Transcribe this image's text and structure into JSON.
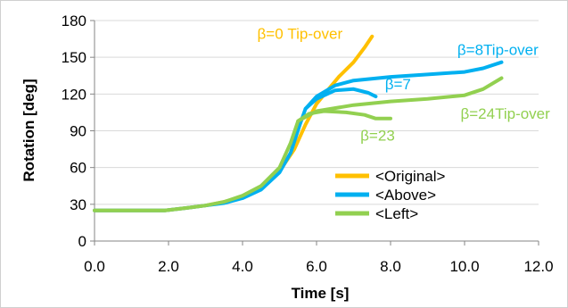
{
  "chart_data": {
    "type": "line",
    "xlabel": "Time [s]",
    "ylabel": "Rotation [deg]",
    "xlim": [
      0,
      12
    ],
    "ylim": [
      0,
      180
    ],
    "x_ticks": [
      0,
      2,
      4,
      6,
      8,
      10,
      12
    ],
    "x_tick_labels": [
      "0.0",
      "2.0",
      "4.0",
      "6.0",
      "8.0",
      "10.0",
      "12.0"
    ],
    "y_ticks": [
      0,
      30,
      60,
      90,
      120,
      150,
      180
    ],
    "y_tick_labels": [
      "0",
      "30",
      "60",
      "90",
      "120",
      "150",
      "180"
    ],
    "grid": "horizontal",
    "legend_position": "lower-right",
    "series": [
      {
        "name": "<Original>",
        "color": "#FFC000",
        "points": [
          [
            0,
            25
          ],
          [
            1.9,
            25
          ],
          [
            2.5,
            27
          ],
          [
            3.0,
            29
          ],
          [
            3.5,
            32
          ],
          [
            4.0,
            36
          ],
          [
            4.5,
            43
          ],
          [
            5.0,
            57
          ],
          [
            5.4,
            75
          ],
          [
            5.7,
            95
          ],
          [
            6.0,
            112
          ],
          [
            6.3,
            123
          ],
          [
            6.6,
            134
          ],
          [
            7.0,
            146
          ],
          [
            7.3,
            158
          ],
          [
            7.5,
            167
          ]
        ]
      },
      {
        "name": "<Above>",
        "color": "#00B0F0",
        "points": [
          [
            0,
            25
          ],
          [
            1.9,
            25
          ],
          [
            2.5,
            27
          ],
          [
            3.0,
            29
          ],
          [
            3.5,
            31
          ],
          [
            4.0,
            35
          ],
          [
            4.5,
            42
          ],
          [
            5.0,
            56
          ],
          [
            5.3,
            72
          ],
          [
            5.55,
            95
          ],
          [
            5.7,
            108
          ],
          [
            6.0,
            116
          ],
          [
            6.5,
            123
          ],
          [
            7.0,
            124
          ],
          [
            7.4,
            121
          ],
          [
            7.6,
            118
          ]
        ]
      },
      {
        "name": "<Above> β=8",
        "color": "#00B0F0",
        "points": [
          [
            5.7,
            108
          ],
          [
            6.0,
            118
          ],
          [
            6.5,
            127
          ],
          [
            7.0,
            131
          ],
          [
            8.0,
            134
          ],
          [
            9.0,
            136
          ],
          [
            10.0,
            138
          ],
          [
            10.5,
            141
          ],
          [
            11.0,
            146
          ]
        ]
      },
      {
        "name": "<Left>",
        "color": "#92D050",
        "points": [
          [
            0,
            25
          ],
          [
            1.9,
            25
          ],
          [
            2.5,
            27
          ],
          [
            3.0,
            29
          ],
          [
            3.5,
            32
          ],
          [
            4.0,
            37
          ],
          [
            4.5,
            45
          ],
          [
            5.0,
            60
          ],
          [
            5.3,
            80
          ],
          [
            5.5,
            98
          ],
          [
            5.8,
            104
          ],
          [
            6.2,
            106
          ],
          [
            6.8,
            105
          ],
          [
            7.3,
            103
          ],
          [
            7.6,
            100
          ],
          [
            8.0,
            100
          ]
        ]
      },
      {
        "name": "<Left> β=24",
        "color": "#92D050",
        "points": [
          [
            5.5,
            98
          ],
          [
            6.0,
            106
          ],
          [
            7.0,
            111
          ],
          [
            8.0,
            114
          ],
          [
            9.0,
            116
          ],
          [
            10.0,
            119
          ],
          [
            10.5,
            124
          ],
          [
            11.0,
            133
          ]
        ]
      }
    ],
    "annotations": [
      {
        "text": "β=0 Tip-over",
        "color": "#FFC000",
        "x": 5.55,
        "y": 165
      },
      {
        "text": "β=8Tip-over",
        "color": "#00B0F0",
        "x": 10.9,
        "y": 152
      },
      {
        "text": "β=7",
        "color": "#00B0F0",
        "x": 8.2,
        "y": 124
      },
      {
        "text": "β=24Tip-over",
        "color": "#92D050",
        "x": 11.1,
        "y": 100
      },
      {
        "text": "β=23",
        "color": "#92D050",
        "x": 7.65,
        "y": 82
      }
    ],
    "legend": [
      {
        "label": "<Original>",
        "color": "#FFC000"
      },
      {
        "label": "<Above>",
        "color": "#00B0F0"
      },
      {
        "label": "<Left>",
        "color": "#92D050"
      }
    ]
  }
}
